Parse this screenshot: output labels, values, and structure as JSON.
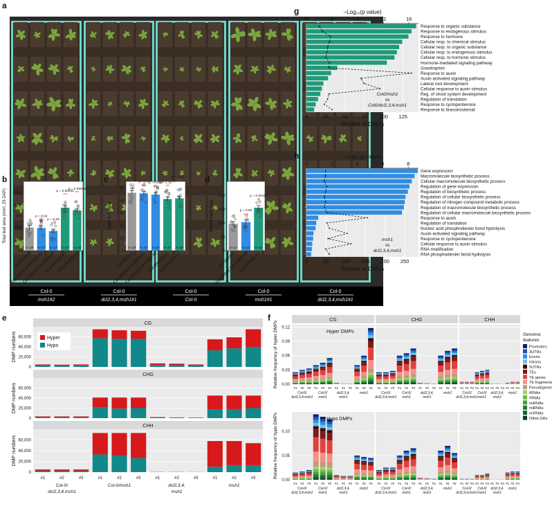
{
  "colors": {
    "green": "#1f9a7a",
    "blue": "#2f8de4",
    "grey": "#9a9a9a",
    "hyper": "#d7191c",
    "hypo": "#11888a",
    "strip": "#d9d9d9",
    "panel_bg": "#ebebeb",
    "photo_bg": "#2a2a2a",
    "tray": "#6fd6c6",
    "soil": "#3a2e25",
    "plant": "#7aa73d",
    "sig": "#e8251d"
  },
  "panel_a": {
    "letter": "a",
    "labels": [
      {
        "top": "Col-0",
        "bottom": "msh1#2"
      },
      {
        "top": "Col-0",
        "bottom": "dcl2,3,4,msh1#1"
      },
      {
        "top": "Col-0",
        "bottom": "Col-0"
      },
      {
        "top": "Col-0",
        "bottom": "msh1#1"
      },
      {
        "top": "Col-0",
        "bottom": "dcl2,3,4,msh1#1"
      }
    ]
  },
  "panel_b": {
    "letter": "b",
    "chart_data": {
      "type": "bar",
      "ylabel": "Total leaf area (mm², 25 DAP)",
      "ylim": [
        0,
        1500
      ],
      "yticks": [
        0,
        250,
        500,
        750,
        1000,
        1250
      ],
      "categories": [
        "Col-0/Col-0",
        "Col-0/dcl2,3,4,msh1 #1",
        "Col-0/dcl2,3,4,msh1 #2",
        "Col-0/msh1 #1",
        "Col-0/msh1 #2"
      ],
      "values": [
        500,
        490,
        420,
        930,
        870
      ],
      "n_labels": [
        "n=18",
        "n=17",
        "n=17",
        "n=17",
        "n=18"
      ],
      "p_labels": [
        "",
        "p = 0.94",
        "p = 0.28",
        "p = 0.00001",
        "p = 0.00008"
      ],
      "sig_labels": [
        "",
        "n.s",
        "n.s",
        "***",
        "***"
      ]
    }
  },
  "panel_c": {
    "letter": "c",
    "chart_data": {
      "type": "bar",
      "ylabel": "Days to bolting",
      "ylim": [
        0,
        55
      ],
      "yticks": [
        0,
        10,
        20,
        30,
        40,
        50
      ],
      "categories": [
        "Col-0/Col-0",
        "Col-0/dcl2,3,4,msh1 #1",
        "Col-0/dcl2,3,4,msh1 #2",
        "Col-0/msh1 #1",
        "Col-0/msh1 #2"
      ],
      "values": [
        46,
        45.5,
        44.5,
        41,
        41.5
      ],
      "n_labels": [
        "n=18",
        "n=17",
        "n=17",
        "n=17",
        "n=18"
      ],
      "p_labels": [
        "",
        "p = 0.4",
        "p = 0.052",
        "p = 1.1E⁻⁹",
        "p = 1.1E⁻⁹"
      ],
      "sig_labels": [
        "",
        "n.s",
        "n.s",
        "***",
        "***"
      ]
    }
  },
  "panel_d": {
    "letter": "d",
    "chart_data": {
      "type": "bar",
      "ylabel": "Seed weight (mg)",
      "ylim": [
        0,
        250
      ],
      "yticks": [
        0,
        50,
        100,
        150,
        200
      ],
      "categories": [
        "Col-0/Col-0",
        "Col-0/dcl2,3,4,msh1 #1",
        "Col-0/msh1 #1"
      ],
      "values": [
        97,
        103,
        155
      ],
      "n_labels": [
        "n=12",
        "n=12",
        "n=12"
      ],
      "p_labels": [
        "",
        "p = 0.89",
        "p = 0.00112"
      ],
      "sig_labels": [
        "",
        "n.s",
        "**"
      ]
    }
  },
  "panel_e": {
    "letter": "e",
    "chart_data": {
      "type": "bar",
      "ylabel": "DMP numbers",
      "ylim": [
        0,
        80000
      ],
      "yticks": [
        "0",
        "20,000",
        "40,000",
        "60,000"
      ],
      "ytick_values": [
        0,
        20000,
        40000,
        60000
      ],
      "legend": [
        "Hyper",
        "Hypo"
      ],
      "facets": [
        {
          "name": "CG",
          "hypo": [
            3000,
            2500,
            3000,
            57000,
            56000,
            56000,
            4000,
            3500,
            3000,
            33000,
            37000,
            40000
          ],
          "hyper": [
            2000,
            2000,
            2000,
            18000,
            17000,
            16000,
            3000,
            3000,
            2000,
            22000,
            22000,
            35000
          ]
        },
        {
          "name": "CHG",
          "hypo": [
            2000,
            2000,
            2000,
            22000,
            19000,
            20000,
            1500,
            1000,
            800,
            17000,
            18000,
            20000
          ],
          "hyper": [
            1500,
            1500,
            1500,
            19000,
            22000,
            21000,
            700,
            500,
            300,
            28000,
            27000,
            25000
          ]
        },
        {
          "name": "CHH",
          "hypo": [
            2500,
            2500,
            2500,
            33000,
            31000,
            26000,
            300,
            300,
            200,
            10000,
            13000,
            13000
          ],
          "hyper": [
            2500,
            2500,
            2500,
            40000,
            42000,
            47000,
            200,
            200,
            100,
            48000,
            45000,
            41000
          ]
        }
      ],
      "rep_labels": [
        "#1",
        "#2",
        "#3",
        "#1",
        "#2",
        "#3",
        "#1",
        "#2",
        "#3",
        "#1",
        "#2",
        "#3"
      ],
      "group_labels": [
        {
          "line1": "Col-0/",
          "line2": "dcl2,3,4,msh1"
        },
        {
          "line1": "Col-0/msh1",
          "line2": ""
        },
        {
          "line1": "dcl2,3,4,",
          "line2": "msh1"
        },
        {
          "line1": "msh1",
          "line2": ""
        }
      ]
    }
  },
  "panel_f": {
    "letter": "f",
    "chart_data": {
      "type": "bar",
      "facets": [
        "CG",
        "CHG",
        "CHH"
      ],
      "rows": [
        {
          "name": "Hyper DMPs",
          "ylabel": "Relative frequency of hyper DMPs",
          "ylim": [
            0,
            0.125
          ],
          "yticks": [
            "0.00",
            "0.03",
            "0.06",
            "0.09",
            "0.12"
          ],
          "ytick_values": [
            0,
            0.03,
            0.06,
            0.09,
            0.12
          ],
          "totals": [
            [
              0.025,
              0.03,
              0.033,
              0.04,
              0.045,
              0.055,
              0.003,
              0.001,
              0.001,
              0.04,
              0.06,
              0.118
            ],
            [
              0.025,
              0.025,
              0.028,
              0.06,
              0.065,
              0.075,
              0.003,
              0.002,
              0.001,
              0.06,
              0.07,
              0.075
            ],
            [
              0.005,
              0.005,
              0.005,
              0.025,
              0.028,
              0.03,
              0.001,
              0.001,
              0.0005,
              0.003,
              0.005,
              0.005
            ]
          ]
        },
        {
          "name": "Hypo DMPs",
          "ylabel": "Relative frequency of hypo DMPs",
          "ylim": [
            0,
            0.14
          ],
          "yticks": [
            "0.00",
            "0.05",
            "0.10"
          ],
          "ytick_values": [
            0,
            0.05,
            0.1
          ],
          "totals": [
            [
              0.015,
              0.017,
              0.02,
              0.135,
              0.13,
              0.125,
              0.01,
              0.008,
              0.008,
              0.05,
              0.047,
              0.045
            ],
            [
              0.02,
              0.025,
              0.025,
              0.05,
              0.06,
              0.065,
              0.004,
              0.003,
              0.002,
              0.06,
              0.07,
              0.055
            ],
            [
              0.002,
              0.002,
              0.002,
              0.01,
              0.01,
              0.013,
              0.0005,
              0.0005,
              0.0005,
              0.015,
              0.017,
              0.017
            ]
          ]
        }
      ],
      "legend_title": "Genomic\nfeatures",
      "legend": [
        {
          "name": "Promoters",
          "color": "#0b1f6b"
        },
        {
          "name": "3UTRs",
          "color": "#1552b8"
        },
        {
          "name": "Exons",
          "color": "#2c8de6"
        },
        {
          "name": "Introns",
          "color": "#67c2ee"
        },
        {
          "name": "5UTRs",
          "color": "#3b0d0d"
        },
        {
          "name": "TEs",
          "color": "#7e1a17"
        },
        {
          "name": "TE genes",
          "color": "#e2403b"
        },
        {
          "name": "TE fragments",
          "color": "#f2918a"
        },
        {
          "name": "Pseudogenes",
          "color": "#c09a78"
        },
        {
          "name": "tRNAs",
          "color": "#9fd36b"
        },
        {
          "name": "rRNAs",
          "color": "#6fbf3c"
        },
        {
          "name": "snRNAs",
          "color": "#3fa33a"
        },
        {
          "name": "miRNAs",
          "color": "#1f7d2f"
        },
        {
          "name": "ncRNAs",
          "color": "#14602a"
        },
        {
          "name": "Other.GRs",
          "color": "#0b3d1d"
        }
      ],
      "rep_labels": [
        "#1",
        "#2",
        "#3",
        "#1",
        "#2",
        "#3",
        "#1",
        "#2",
        "#3",
        "#1",
        "#2",
        "#3"
      ],
      "group_labels": [
        {
          "line1": "Col-0/",
          "line2": "dcl2,3,4,msh1"
        },
        {
          "line1": "Col-0/",
          "line2": "msh1"
        },
        {
          "line1": "dcl2,3,4,",
          "line2": "msh1"
        },
        {
          "line1": "msh1",
          "line2": ""
        }
      ]
    }
  },
  "panel_g": {
    "letter": "g",
    "chart_data": {
      "type": "bar",
      "xlabel": "Number of DMGs",
      "top_axis_label": "−Log₁₀(p value)",
      "xlim": [
        0,
        145
      ],
      "xticks": [
        0,
        25,
        50,
        75,
        100,
        125
      ],
      "top_ticks": [
        0,
        4,
        8,
        12,
        16
      ],
      "top_lim": [
        0,
        17.5
      ],
      "annotation": [
        "Col0/msh1",
        "vs",
        "Col0/dcl2,3,4,msh1"
      ],
      "terms": [
        "Response to organic substance",
        "Response to endogenous stimulus",
        "Response to hormone",
        "Cellular resp. to chemical stimulus",
        "Cellular resp. to organic substance",
        "Cellular resp. to endogenous stimulus",
        "Cellular resp. to hormone stimulus",
        "Hormone-mediated signaling pathway",
        "Gravitropism",
        "Response to auxin",
        "Auxin-activated signaling pathway",
        "Lateral root development",
        "Cellular response to auxin stimulus",
        "Reg. of shoot system development",
        "Regulation of translation",
        "Response to cyclopentenone",
        "Response to brassinosteroid"
      ],
      "values": [
        142,
        136,
        132,
        124,
        120,
        117,
        114,
        104,
        40,
        32,
        28,
        22,
        20,
        18,
        15,
        12,
        10
      ],
      "neglog10p": [
        2,
        2.5,
        3.8,
        3.6,
        3.3,
        3.2,
        3.0,
        3.6,
        3.5,
        16.4,
        8.5,
        9.0,
        11.5,
        3.5,
        3.3,
        2.8,
        4.0
      ]
    }
  },
  "panel_h": {
    "letter": "h",
    "chart_data": {
      "type": "bar",
      "xlabel": "Number of DMGs",
      "top_axis_label": "−Log₁₀(p value)",
      "xlim": [
        0,
        285
      ],
      "xticks": [
        0,
        50,
        100,
        150,
        200,
        250
      ],
      "top_ticks": [
        0,
        2,
        4,
        6,
        8
      ],
      "top_lim": [
        0,
        8.8
      ],
      "annotation": [
        "msh1",
        "vs",
        "dcl2,3,4,msh1"
      ],
      "terms": [
        "Gene expression",
        "Macromolecule biosynthetic process",
        "Cellular macromolecule biosynthetic process",
        "Regulation of gene expression",
        "Regulation of biosynthetic process",
        "Regulation of cellular biosynthetic process",
        "Regulation of nitrogen compound metabolic process",
        "Regulation of macromolecule biosynthetic process",
        "Regulation of cellular macromolecule biosynthetic process",
        "Response to auxin",
        "Regulation of translation",
        "Nucleic acid phosphodiester bond hydrolysis",
        "Auxin-activated signaling pathway",
        "Response to cyclopentenone",
        "Cellular response to auxin stimulus",
        "RNA modification",
        "RNA phosphodiester bond hydrolysis"
      ],
      "values": [
        283,
        275,
        268,
        262,
        258,
        252,
        250,
        248,
        243,
        30,
        25,
        23,
        18,
        17,
        15,
        14,
        12
      ],
      "neglog10p": [
        1.5,
        1.5,
        1.4,
        1.6,
        1.5,
        1.4,
        1.5,
        1.4,
        1.6,
        4.8,
        1.6,
        1.8,
        3.2,
        1.7,
        3.5,
        1.5,
        1.8
      ]
    }
  }
}
